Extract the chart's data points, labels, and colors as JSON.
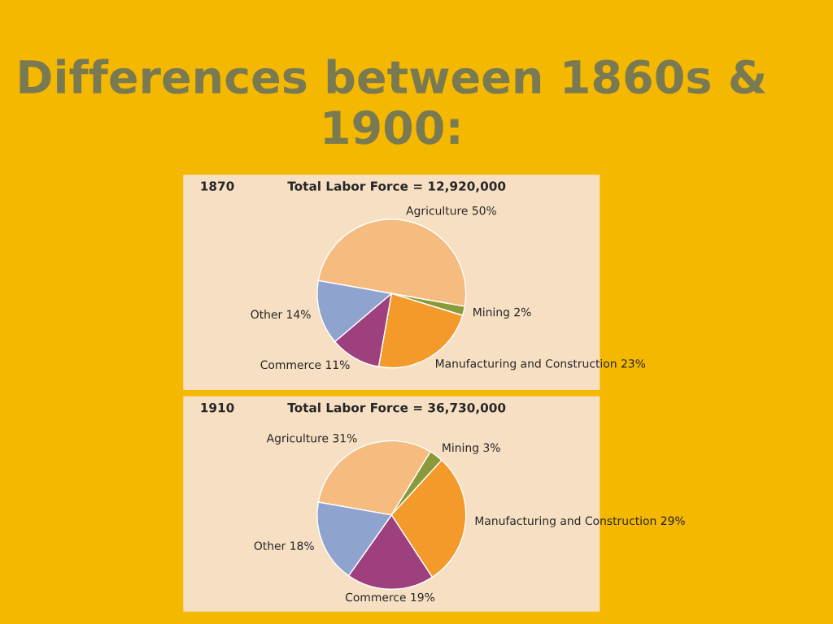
{
  "chart_data": [
    {
      "type": "pie",
      "title": "1870",
      "subtitle": "Total Labor Force = 12,920,000",
      "annotations": [
        "Differences between 1860s & 1900:"
      ],
      "categories": [
        "Agriculture",
        "Mining",
        "Manufacturing and Construction",
        "Commerce",
        "Other"
      ],
      "values": [
        50,
        2,
        23,
        11,
        14
      ],
      "value_labels": [
        "50%",
        "2%",
        "23%",
        "11%",
        "14%"
      ],
      "colors": [
        "#f6bb7e",
        "#8a9a3a",
        "#f39a2a",
        "#9e3f7e",
        "#8fa3cf"
      ]
    },
    {
      "type": "pie",
      "title": "1910",
      "subtitle": "Total Labor Force = 36,730,000",
      "categories": [
        "Agriculture",
        "Mining",
        "Manufacturing and Construction",
        "Commerce",
        "Other"
      ],
      "values": [
        31,
        3,
        29,
        19,
        18
      ],
      "value_labels": [
        "31%",
        "3%",
        "29%",
        "19%",
        "18%"
      ],
      "colors": [
        "#f6bb7e",
        "#8a9a3a",
        "#f39a2a",
        "#9e3f7e",
        "#8fa3cf"
      ]
    }
  ]
}
